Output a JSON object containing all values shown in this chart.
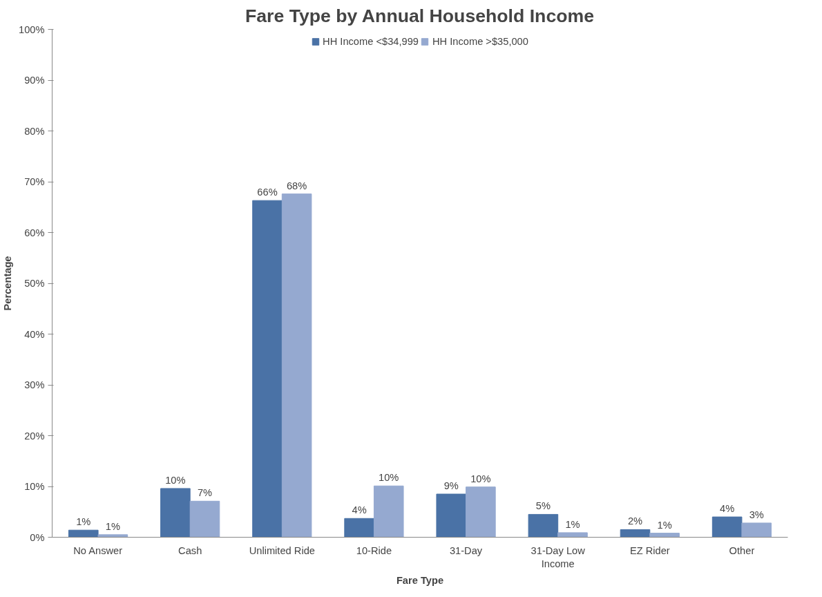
{
  "chart_data": {
    "type": "bar",
    "title": "Fare Type by Annual Household Income",
    "xlabel": "Fare Type",
    "ylabel": "Percentage",
    "categories": [
      "No Answer",
      "Cash",
      "Unlimited Ride",
      "10-Ride",
      "31-Day",
      "31-Day Low Income",
      "EZ Rider",
      "Other"
    ],
    "series": [
      {
        "name": "HH Income <$34,999",
        "color": "#4a72a6",
        "values": [
          1.4,
          9.6,
          66.3,
          3.7,
          8.5,
          4.5,
          1.5,
          4.0
        ],
        "value_labels": [
          "1%",
          "10%",
          "66%",
          "4%",
          "9%",
          "5%",
          "2%",
          "4%"
        ]
      },
      {
        "name": "HH Income >$35,000",
        "color": "#95a9d0",
        "values": [
          0.5,
          7.1,
          67.6,
          10.1,
          9.9,
          0.9,
          0.8,
          2.8
        ],
        "value_labels": [
          "1%",
          "7%",
          "68%",
          "10%",
          "10%",
          "1%",
          "1%",
          "3%"
        ]
      }
    ],
    "ylim": [
      0,
      100
    ],
    "yticks": [
      {
        "value": 0,
        "label": "0%"
      },
      {
        "value": 10,
        "label": "10%"
      },
      {
        "value": 20,
        "label": "20%"
      },
      {
        "value": 30,
        "label": "30%"
      },
      {
        "value": 40,
        "label": "40%"
      },
      {
        "value": 50,
        "label": "50%"
      },
      {
        "value": 60,
        "label": "60%"
      },
      {
        "value": 70,
        "label": "70%"
      },
      {
        "value": 80,
        "label": "80%"
      },
      {
        "value": 90,
        "label": "90%"
      },
      {
        "value": 100,
        "label": "100%"
      }
    ],
    "grid": false,
    "legend": "top"
  }
}
